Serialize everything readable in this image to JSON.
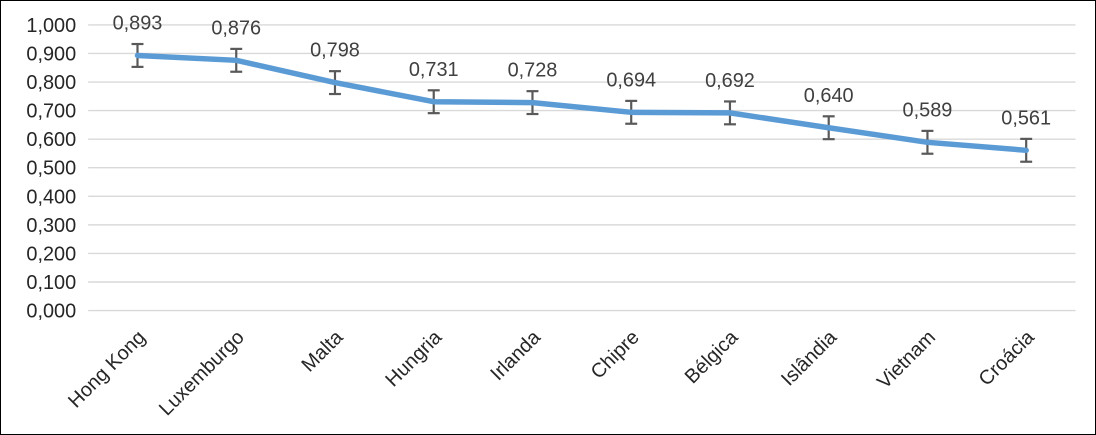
{
  "chart_data": {
    "type": "line",
    "title": "",
    "xlabel": "",
    "ylabel": "",
    "categories": [
      "Hong Kong",
      "Luxemburgo",
      "Malta",
      "Hungria",
      "Irlanda",
      "Chipre",
      "Bélgica",
      "Islândia",
      "Vietnam",
      "Croácia"
    ],
    "values": [
      0.893,
      0.876,
      0.798,
      0.731,
      0.728,
      0.694,
      0.692,
      0.64,
      0.589,
      0.561
    ],
    "data_labels": [
      "0,893",
      "0,876",
      "0,798",
      "0,731",
      "0,728",
      "0,694",
      "0,692",
      "0,640",
      "0,589",
      "0,561"
    ],
    "error_bar_plus_minus": 0.04,
    "ylim": [
      0,
      1
    ],
    "ytick_values": [
      0,
      0.1,
      0.2,
      0.3,
      0.4,
      0.5,
      0.6,
      0.7,
      0.8,
      0.9,
      1.0
    ],
    "ytick_labels": [
      "0,000",
      "0,100",
      "0,200",
      "0,300",
      "0,400",
      "0,500",
      "0,600",
      "0,700",
      "0,800",
      "0,900",
      "1,000"
    ],
    "x_tick_rotation_deg": -45,
    "grid": true,
    "legend": "none",
    "colors": {
      "line": "#5B9BD5",
      "error_bar": "#595959",
      "gridline": "#D9D9D9",
      "data_label": "#404040",
      "axis_label": "#262626",
      "background": "#FFFFFF",
      "frame_border": "#000000"
    }
  }
}
